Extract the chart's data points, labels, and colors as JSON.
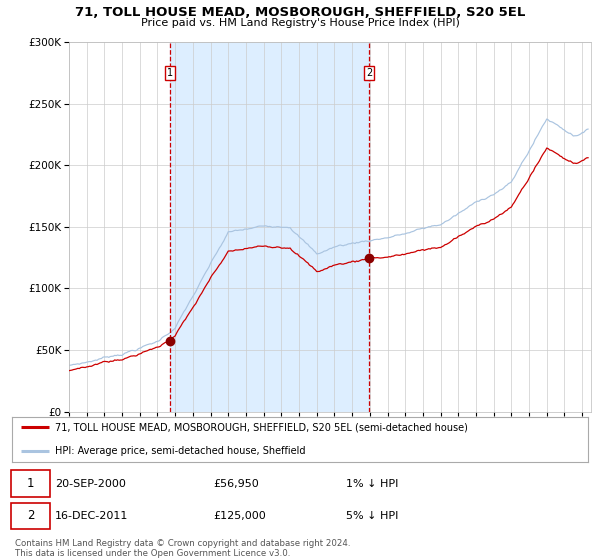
{
  "title": "71, TOLL HOUSE MEAD, MOSBOROUGH, SHEFFIELD, S20 5EL",
  "subtitle": "Price paid vs. HM Land Registry's House Price Index (HPI)",
  "legend_line1": "71, TOLL HOUSE MEAD, MOSBOROUGH, SHEFFIELD, S20 5EL (semi-detached house)",
  "legend_line2": "HPI: Average price, semi-detached house, Sheffield",
  "event1_date": "20-SEP-2000",
  "event1_price": "£56,950",
  "event1_hpi": "1% ↓ HPI",
  "event2_date": "16-DEC-2011",
  "event2_price": "£125,000",
  "event2_hpi": "5% ↓ HPI",
  "footer": "Contains HM Land Registry data © Crown copyright and database right 2024.\nThis data is licensed under the Open Government Licence v3.0.",
  "hpi_color": "#aac4e0",
  "price_color": "#cc0000",
  "marker_color": "#8b0000",
  "vline_color": "#cc0000",
  "bg_color": "#ddeeff",
  "plot_bg": "#ffffff",
  "ylim": [
    0,
    300000
  ],
  "xlim_start": 1995.0,
  "xlim_end": 2024.5,
  "start_year": 1995,
  "end_year": 2024,
  "event1_x": 2000.72,
  "event1_y": 56950,
  "event2_x": 2011.96,
  "event2_y": 125000
}
